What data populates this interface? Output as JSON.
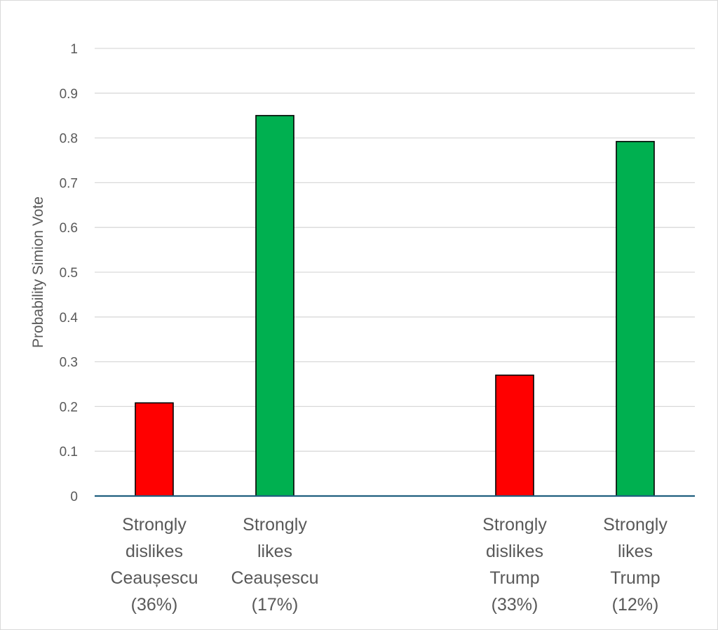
{
  "chart_data": {
    "type": "bar",
    "title": "",
    "xlabel": "",
    "ylabel": "Probability Simion Vote",
    "ylim": [
      0,
      1
    ],
    "yticks": [
      "0",
      "0.1",
      "0.2",
      "0.3",
      "0.4",
      "0.5",
      "0.6",
      "0.7",
      "0.8",
      "0.9",
      "1"
    ],
    "grid": true,
    "legend": "none",
    "categories": [
      [
        "Strongly",
        "dislikes",
        "Ceaușescu",
        "(36%)"
      ],
      [
        "Strongly",
        "likes",
        "Ceaușescu",
        "(17%)"
      ],
      [
        "Strongly",
        "dislikes",
        "Trump",
        "(33%)"
      ],
      [
        "Strongly",
        "likes",
        "Trump",
        "(12%)"
      ]
    ],
    "values": [
      0.208,
      0.85,
      0.27,
      0.792
    ],
    "colors": [
      "#ff0000",
      "#00b050",
      "#ff0000",
      "#00b050"
    ],
    "axis_color": "#1f5f7f",
    "grid_color": "#d9d9d9"
  }
}
